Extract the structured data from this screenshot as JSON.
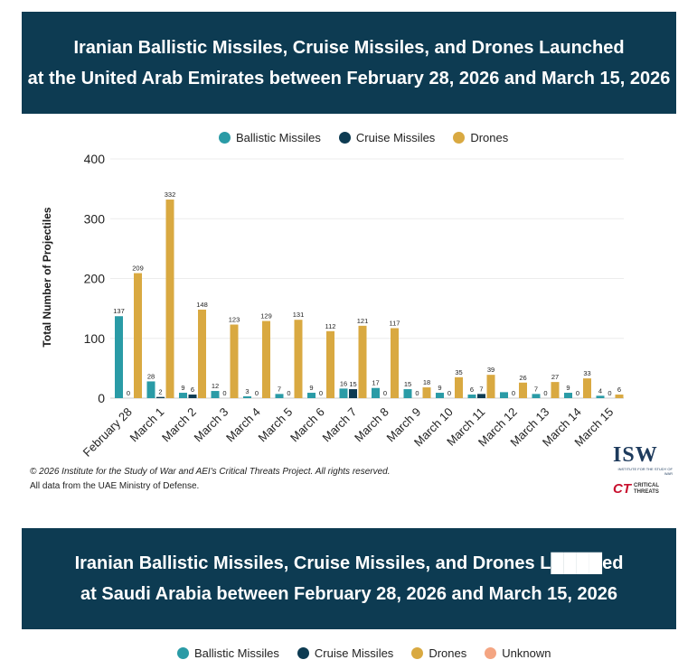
{
  "banner1": {
    "line1": "Iranian Ballistic Missiles, Cruise Missiles, and Drones Launched",
    "line2": "at the United Arab Emirates between February 28, 2026 and March 15, 2026"
  },
  "banner2": {
    "line1": "Iranian Ballistic Missiles, Cruise Missiles, and Drones L████ed",
    "line2": "at Saudi Arabia between February 28, 2026 and March 15, 2026"
  },
  "legend1": [
    {
      "label": "Ballistic Missiles",
      "color": "#2a9ba6"
    },
    {
      "label": "Cruise Missiles",
      "color": "#0d3b52"
    },
    {
      "label": "Drones",
      "color": "#d9a941"
    }
  ],
  "legend2": [
    {
      "label": "Ballistic Missiles",
      "color": "#2a9ba6"
    },
    {
      "label": "Cruise Missiles",
      "color": "#0d3b52"
    },
    {
      "label": "Drones",
      "color": "#d9a941"
    },
    {
      "label": "Unknown",
      "color": "#f4a582"
    }
  ],
  "footer": {
    "copyright": "© 2026 Institute for the Study of War and AEI's Critical Threats Project. All rights reserved.",
    "source": "All data from the UAE Ministry of Defense."
  },
  "logos": {
    "isw": "ISW",
    "isw_sub": "INSTITUTE FOR THE STUDY OF WAR",
    "ct_mark": "CT",
    "ct_text_1": "CRITICAL",
    "ct_text_2": "THREATS"
  },
  "chart_data": {
    "type": "bar",
    "title": "Iranian Ballistic Missiles, Cruise Missiles, and Drones Launched at the United Arab Emirates between February 28, 2026 and March 15, 2026",
    "xlabel": "",
    "ylabel": "Total Number of Projectiles",
    "ylim": [
      0,
      400
    ],
    "yticks": [
      0,
      100,
      200,
      300,
      400
    ],
    "legend_position": "top-center",
    "grid": true,
    "categories": [
      "February 28",
      "March 1",
      "March 2",
      "March 3",
      "March 4",
      "March 5",
      "March 6",
      "March 7",
      "March 8",
      "March 9",
      "March 10",
      "March 11",
      "March 12",
      "March 13",
      "March 14",
      "March 15"
    ],
    "series": [
      {
        "name": "Ballistic Missiles",
        "color": "#2a9ba6",
        "values": [
          137,
          28,
          9,
          12,
          3,
          7,
          9,
          16,
          17,
          15,
          9,
          6,
          10,
          7,
          9,
          4
        ]
      },
      {
        "name": "Cruise Missiles",
        "color": "#0d3b52",
        "values": [
          0,
          2,
          6,
          0,
          0,
          0,
          0,
          15,
          0,
          0,
          0,
          7,
          0,
          0,
          0,
          0
        ]
      },
      {
        "name": "Drones",
        "color": "#d9a941",
        "values": [
          209,
          332,
          148,
          123,
          129,
          131,
          112,
          121,
          117,
          18,
          35,
          39,
          26,
          27,
          33,
          6
        ]
      }
    ],
    "data_labels": [
      [
        "137",
        "28",
        "9",
        "12",
        "3",
        "7",
        "9",
        "16",
        "17",
        "15",
        "9",
        "6",
        "",
        "7",
        "9",
        "4"
      ],
      [
        "0",
        "2",
        "6",
        "0",
        "0",
        "0",
        "0",
        "15",
        "0",
        "0",
        "0",
        "7",
        "0",
        "0",
        "0",
        "0"
      ],
      [
        "209",
        "332",
        "148",
        "123",
        "129",
        "131",
        "112",
        "121",
        "117",
        "18",
        "35",
        "39",
        "26",
        "27",
        "33",
        "6"
      ]
    ]
  }
}
